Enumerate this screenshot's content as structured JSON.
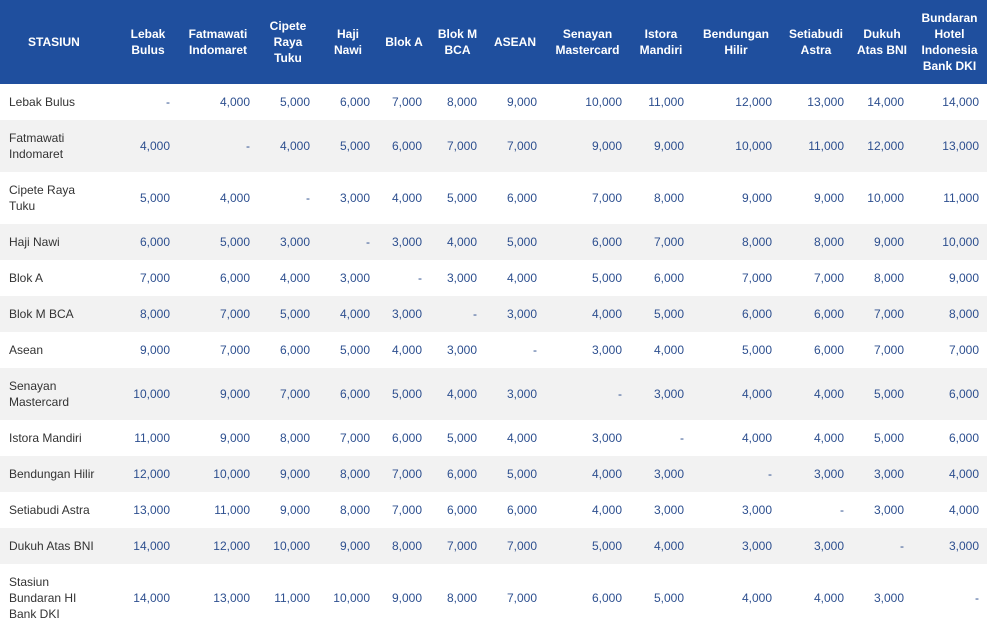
{
  "table": {
    "header": [
      "STASIUN",
      "Lebak Bulus",
      "Fatmawati Indomaret",
      "Cipete Raya Tuku",
      "Haji Nawi",
      "Blok A",
      "Blok M BCA",
      "ASEAN",
      "Senayan Mastercard",
      "Istora Mandiri",
      "Bendungan Hilir",
      "Setiabudi Astra",
      "Dukuh Atas BNI",
      "Bundaran Hotel Indonesia Bank DKI"
    ],
    "rows": [
      [
        "Lebak Bulus",
        "-",
        "4,000",
        "5,000",
        "6,000",
        "7,000",
        "8,000",
        "9,000",
        "10,000",
        "11,000",
        "12,000",
        "13,000",
        "14,000",
        "14,000"
      ],
      [
        "Fatmawati Indomaret",
        "4,000",
        "-",
        "4,000",
        "5,000",
        "6,000",
        "7,000",
        "7,000",
        "9,000",
        "9,000",
        "10,000",
        "11,000",
        "12,000",
        "13,000"
      ],
      [
        "Cipete Raya Tuku",
        "5,000",
        "4,000",
        "-",
        "3,000",
        "4,000",
        "5,000",
        "6,000",
        "7,000",
        "8,000",
        "9,000",
        "9,000",
        "10,000",
        "11,000"
      ],
      [
        "Haji Nawi",
        "6,000",
        "5,000",
        "3,000",
        "-",
        "3,000",
        "4,000",
        "5,000",
        "6,000",
        "7,000",
        "8,000",
        "8,000",
        "9,000",
        "10,000"
      ],
      [
        "Blok A",
        "7,000",
        "6,000",
        "4,000",
        "3,000",
        "-",
        "3,000",
        "4,000",
        "5,000",
        "6,000",
        "7,000",
        "7,000",
        "8,000",
        "9,000"
      ],
      [
        "Blok M BCA",
        "8,000",
        "7,000",
        "5,000",
        "4,000",
        "3,000",
        "-",
        "3,000",
        "4,000",
        "5,000",
        "6,000",
        "6,000",
        "7,000",
        "8,000"
      ],
      [
        "Asean",
        "9,000",
        "7,000",
        "6,000",
        "5,000",
        "4,000",
        "3,000",
        "-",
        "3,000",
        "4,000",
        "5,000",
        "6,000",
        "7,000",
        "7,000"
      ],
      [
        "Senayan Mastercard",
        "10,000",
        "9,000",
        "7,000",
        "6,000",
        "5,000",
        "4,000",
        "3,000",
        "-",
        "3,000",
        "4,000",
        "4,000",
        "5,000",
        "6,000"
      ],
      [
        "Istora Mandiri",
        "11,000",
        "9,000",
        "8,000",
        "7,000",
        "6,000",
        "5,000",
        "4,000",
        "3,000",
        "-",
        "4,000",
        "4,000",
        "5,000",
        "6,000"
      ],
      [
        "Bendungan Hilir",
        "12,000",
        "10,000",
        "9,000",
        "8,000",
        "7,000",
        "6,000",
        "5,000",
        "4,000",
        "3,000",
        "-",
        "3,000",
        "3,000",
        "4,000"
      ],
      [
        "Setiabudi Astra",
        "13,000",
        "11,000",
        "9,000",
        "8,000",
        "7,000",
        "6,000",
        "6,000",
        "4,000",
        "3,000",
        "3,000",
        "-",
        "3,000",
        "4,000"
      ],
      [
        "Dukuh Atas BNI",
        "14,000",
        "12,000",
        "10,000",
        "9,000",
        "8,000",
        "7,000",
        "7,000",
        "5,000",
        "4,000",
        "3,000",
        "3,000",
        "-",
        "3,000"
      ],
      [
        "Stasiun Bundaran HI Bank DKI",
        "14,000",
        "13,000",
        "11,000",
        "10,000",
        "9,000",
        "8,000",
        "7,000",
        "6,000",
        "5,000",
        "4,000",
        "4,000",
        "3,000",
        "-"
      ]
    ]
  }
}
